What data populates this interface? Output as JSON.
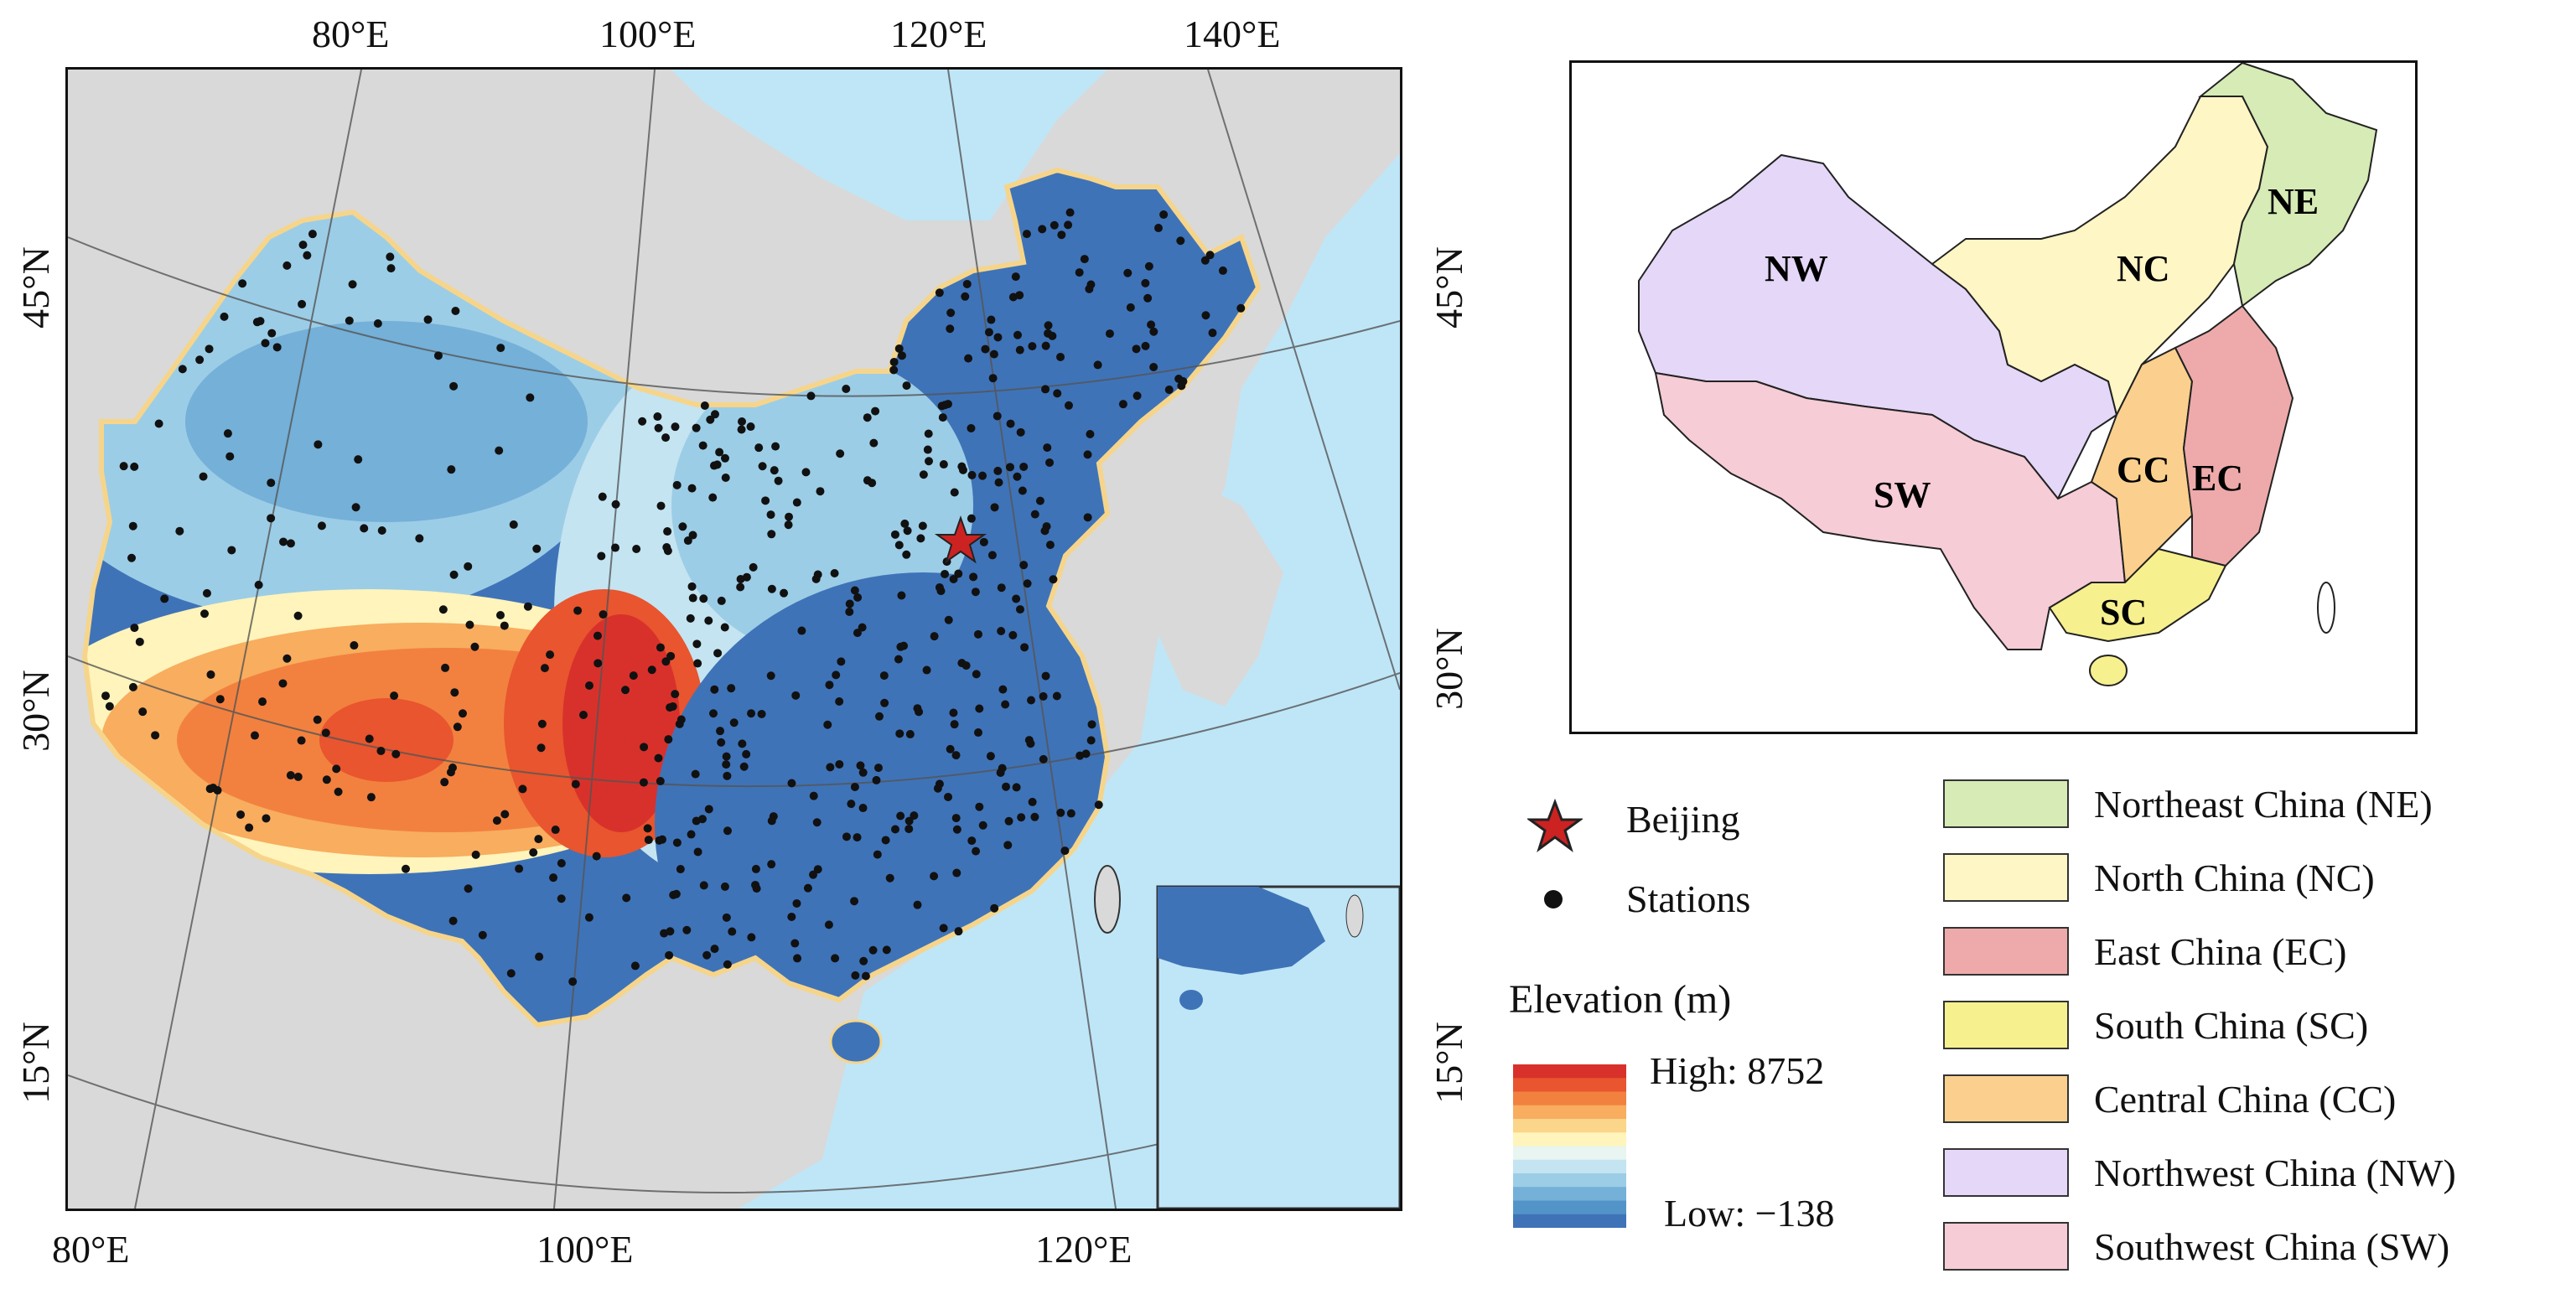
{
  "main_map": {
    "top_lon_labels": [
      "80°E",
      "100°E",
      "120°E",
      "140°E"
    ],
    "bottom_lon_labels": [
      "80°E",
      "100°E",
      "120°E"
    ],
    "left_lat_labels": [
      "45°N",
      "30°N",
      "15°N"
    ],
    "right_lat_labels": [
      "45°N",
      "30°N",
      "15°N"
    ]
  },
  "region_map": {
    "regions": [
      "NE",
      "NC",
      "NW",
      "SW",
      "CC",
      "EC",
      "SC"
    ]
  },
  "legend": {
    "beijing_label": "Beijing",
    "stations_label": "Stations",
    "elevation_title": "Elevation (m)",
    "elevation_high": "High: 8752",
    "elevation_low": "Low: −138",
    "elevation_colors": [
      "#d8312b",
      "#e8552e",
      "#f2813f",
      "#f8ad5f",
      "#fbd589",
      "#fff4bb",
      "#e8f5f0",
      "#c4e4f1",
      "#9ccde6",
      "#74b0d8",
      "#5394c8",
      "#3f73b8"
    ],
    "regions": [
      {
        "label": "Northeast China (NE)",
        "color": "#d6ebb5"
      },
      {
        "label": "North China (NC)",
        "color": "#fff6c5"
      },
      {
        "label": "East China (EC)",
        "color": "#eeaaaa"
      },
      {
        "label": "South China (SC)",
        "color": "#f7f08f"
      },
      {
        "label": "Central China (CC)",
        "color": "#fbd08e"
      },
      {
        "label": "Northwest China (NW)",
        "color": "#e4d7f8"
      },
      {
        "label": "Southwest China (SW)",
        "color": "#f6ccd6"
      }
    ]
  }
}
